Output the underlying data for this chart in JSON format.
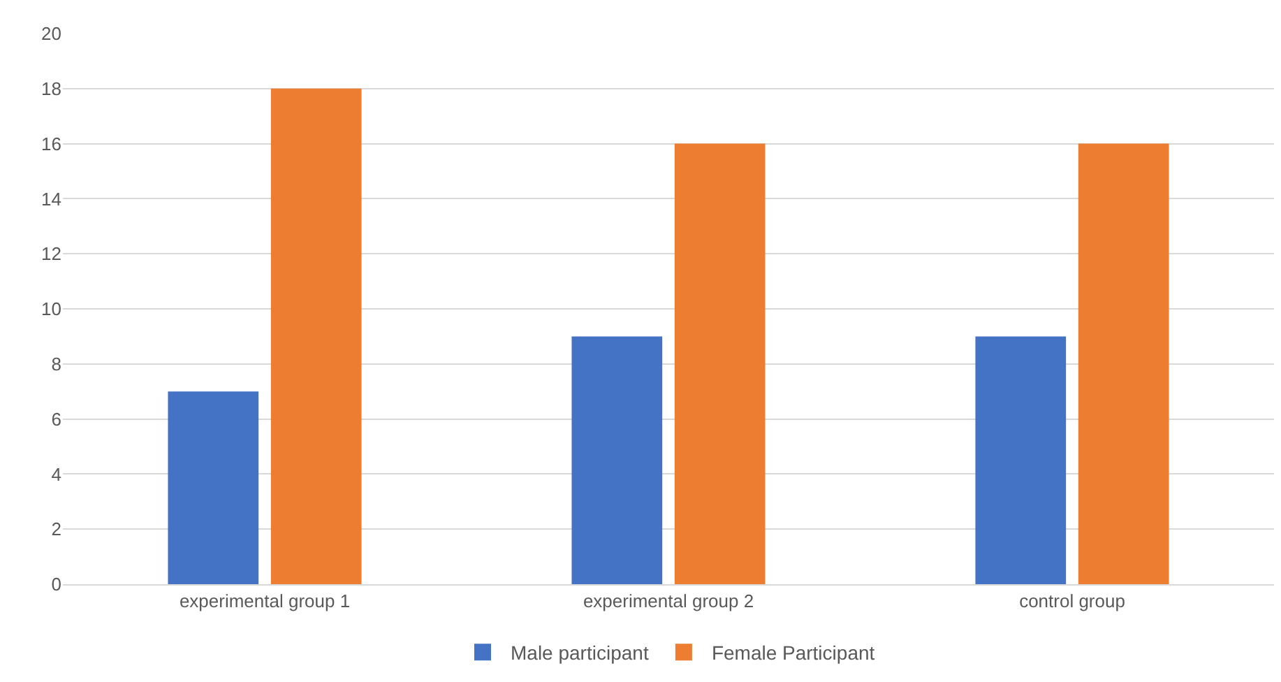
{
  "chart_data": {
    "type": "bar",
    "categories": [
      "experimental group 1",
      "experimental group 2",
      "control group"
    ],
    "series": [
      {
        "name": "Male participant",
        "color": "#4472c4",
        "values": [
          7,
          9,
          9
        ]
      },
      {
        "name": "Female Participant",
        "color": "#ed7d31",
        "values": [
          18,
          16,
          16
        ]
      }
    ],
    "ylim": [
      0,
      20
    ],
    "yticks": [
      0,
      2,
      4,
      6,
      8,
      10,
      12,
      14,
      16,
      18,
      20
    ],
    "grid": "y",
    "legend": "bottom"
  }
}
